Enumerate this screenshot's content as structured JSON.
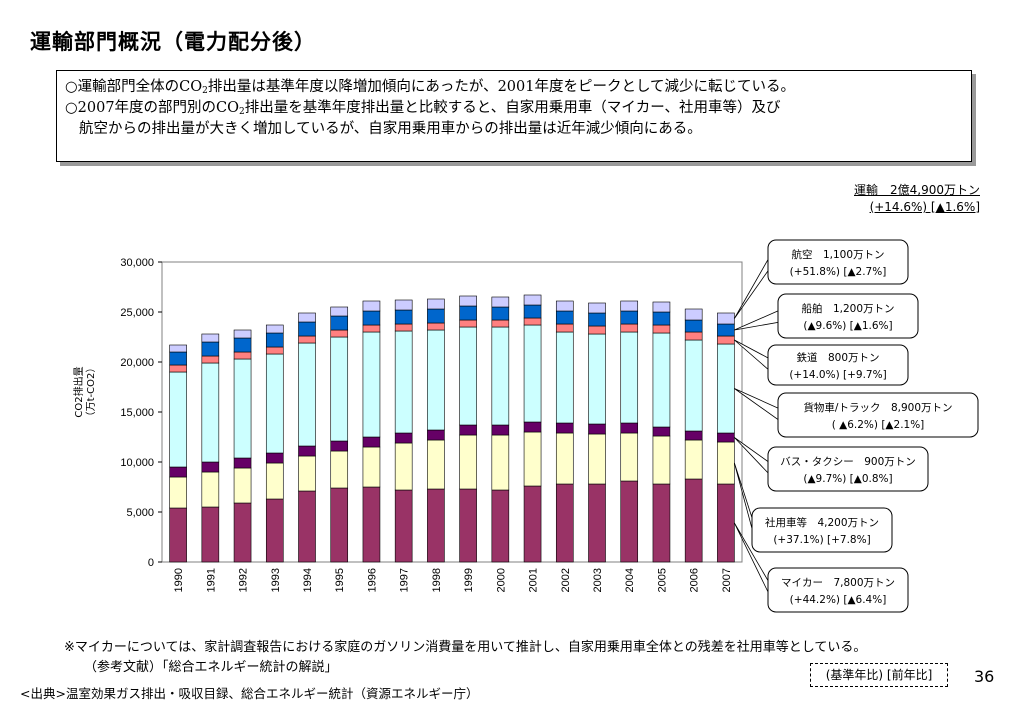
{
  "title": "運輸部門概況（電力配分後）",
  "summary": {
    "line1_a": "○運輸部門全体のCO",
    "line1_sub": "2",
    "line1_b": "排出量は基準年度以降増加傾向にあったが、2001年度をピークとして減少に転じている。",
    "line2_a": "○2007年度の部門別のCO",
    "line2_sub": "2",
    "line2_b": "排出量を基準年度排出量と比較すると、自家用乗用車（マイカー、社用車等）及び",
    "line3": "航空からの排出量が大きく増加しているが、自家用乗用車からの排出量は近年減少傾向にある。"
  },
  "total": {
    "line1": "運輸　2億4,900万トン",
    "line2": "(+14.6%) [▲1.6%]"
  },
  "chart_data": {
    "type": "bar",
    "stacked": true,
    "ylabel": "CO2排出量\n（万t-CO2）",
    "ylim": [
      0,
      30000
    ],
    "yticks": [
      "0",
      "5,000",
      "10,000",
      "15,000",
      "20,000",
      "25,000",
      "30,000"
    ],
    "grid": false,
    "categories": [
      "1990",
      "1991",
      "1992",
      "1993",
      "1994",
      "1995",
      "1996",
      "1997",
      "1998",
      "1999",
      "2000",
      "2001",
      "2002",
      "2003",
      "2004",
      "2005",
      "2006",
      "2007"
    ],
    "series": [
      {
        "name": "マイカー",
        "color": "#993366",
        "values": [
          5400,
          5500,
          5900,
          6300,
          7100,
          7400,
          7500,
          7200,
          7300,
          7300,
          7200,
          7600,
          7800,
          7800,
          8100,
          7800,
          8300,
          7800
        ]
      },
      {
        "name": "社用車等",
        "color": "#ffffcc",
        "values": [
          3100,
          3500,
          3500,
          3600,
          3500,
          3700,
          4000,
          4700,
          4900,
          5400,
          5500,
          5400,
          5100,
          5000,
          4800,
          4800,
          3900,
          4200
        ]
      },
      {
        "name": "バス・タクシー",
        "color": "#660066",
        "values": [
          1000,
          1000,
          1000,
          1000,
          1000,
          1000,
          1000,
          1000,
          1000,
          1000,
          1000,
          1000,
          1000,
          1000,
          1000,
          900,
          900,
          900
        ]
      },
      {
        "name": "貨物車/トラック",
        "color": "#ccffff",
        "values": [
          9500,
          9900,
          9900,
          9900,
          10300,
          10400,
          10500,
          10200,
          10000,
          9800,
          9800,
          9700,
          9100,
          9000,
          9100,
          9400,
          9100,
          8900
        ]
      },
      {
        "name": "鉄道",
        "color": "#ff8080",
        "values": [
          700,
          700,
          700,
          700,
          700,
          700,
          700,
          700,
          700,
          700,
          700,
          700,
          800,
          800,
          800,
          800,
          800,
          800
        ]
      },
      {
        "name": "船舶",
        "color": "#0066cc",
        "values": [
          1300,
          1400,
          1400,
          1400,
          1400,
          1400,
          1400,
          1400,
          1400,
          1400,
          1300,
          1300,
          1300,
          1300,
          1300,
          1300,
          1200,
          1200
        ]
      },
      {
        "name": "航空",
        "color": "#ccccff",
        "values": [
          700,
          800,
          800,
          800,
          900,
          900,
          1000,
          1000,
          1000,
          1000,
          1000,
          1000,
          1000,
          1000,
          1000,
          1000,
          1100,
          1100
        ]
      }
    ],
    "callouts": [
      {
        "line1": "航空　1,100万トン",
        "line2": "(+51.8%)  [▲2.7%]",
        "series": "航空"
      },
      {
        "line1": "船舶　1,200万トン",
        "line2": "(▲9.6%)  [▲1.6%]",
        "series": "船舶"
      },
      {
        "line1": "鉄道　800万トン",
        "line2": "(+14.0%)  [+9.7%]",
        "series": "鉄道"
      },
      {
        "line1": "貨物車/トラック　8,900万トン",
        "line2": "( ▲6.2%)  [▲2.1%]",
        "series": "貨物車/トラック"
      },
      {
        "line1": "バス・タクシー　900万トン",
        "line2": "(▲9.7%)  [▲0.8%]",
        "series": "バス・タクシー"
      },
      {
        "line1": "社用車等　4,200万トン",
        "line2": "(+37.1%)  [+7.8%]",
        "series": "社用車等"
      },
      {
        "line1": "マイカー　7,800万トン",
        "line2": "(+44.2%)  [▲6.4%]",
        "series": "マイカー"
      }
    ]
  },
  "footnote": "※マイカーについては、家計調査報告における家庭のガソリン消費量を用いて推計し、自家用乗用車全体との残差を社用車等としている。",
  "reference": "（参考文献）「総合エネルギー統計の解説」",
  "legend_note": "(基準年比) [前年比]",
  "source": "<出典>温室効果ガス排出・吸収目録、総合エネルギー統計（資源エネルギー庁）",
  "page_number": "36"
}
